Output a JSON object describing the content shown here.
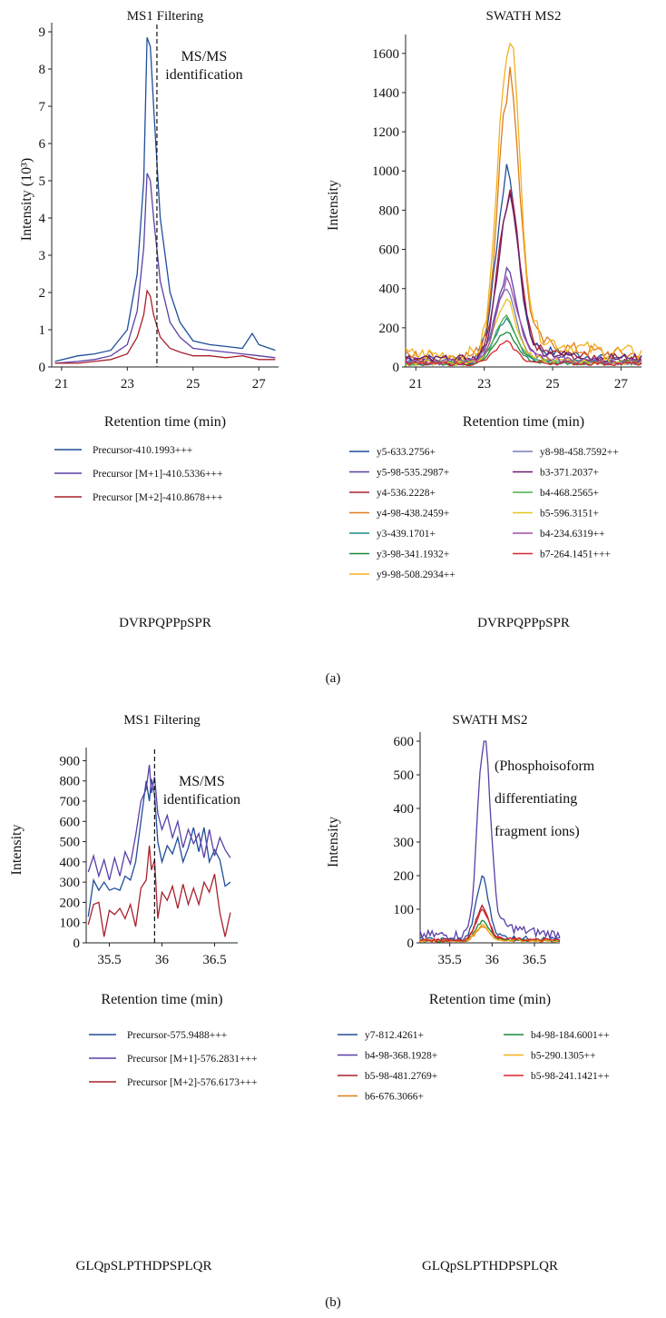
{
  "panel_labels": [
    "(a)",
    "(b)"
  ],
  "chart_data": [
    {
      "type": "line",
      "panel": "(a)",
      "title": "MS1 Filtering",
      "xlabel": "Retention time (min)",
      "ylabel": "Intensity (10³)",
      "xlim": [
        20.7,
        27.6
      ],
      "ylim": [
        0,
        9
      ],
      "xticks": [
        21,
        23,
        25,
        27
      ],
      "yticks": [
        0,
        1,
        2,
        3,
        4,
        5,
        6,
        7,
        8,
        9
      ],
      "annotation": {
        "lines": [
          "MS/MS",
          "identification"
        ],
        "x": 23.9
      },
      "peptide": "DVRPQPPpSPR",
      "legend": [
        "Precursor-410.1993+++",
        "Precursor [M+1]-410.5336+++",
        "Precursor [M+2]-410.8678+++"
      ],
      "series": [
        {
          "name": "Precursor-410.1993+++",
          "color": "#1f4e99",
          "x": [
            20.8,
            21.5,
            22.0,
            22.5,
            23.0,
            23.3,
            23.5,
            23.6,
            23.7,
            23.8,
            24.0,
            24.3,
            24.6,
            25.0,
            25.5,
            26.0,
            26.5,
            26.8,
            27.0,
            27.5
          ],
          "y": [
            0.15,
            0.3,
            0.35,
            0.45,
            1.0,
            2.5,
            5.0,
            8.85,
            8.6,
            7.0,
            4.0,
            2.0,
            1.2,
            0.7,
            0.6,
            0.55,
            0.5,
            0.9,
            0.6,
            0.45
          ]
        },
        {
          "name": "Precursor [M+1]-410.5336+++",
          "color": "#5b3fa6",
          "x": [
            20.8,
            21.5,
            22.0,
            22.5,
            23.0,
            23.3,
            23.5,
            23.6,
            23.7,
            23.8,
            24.0,
            24.3,
            24.6,
            25.0,
            25.5,
            26.0,
            26.5,
            27.0,
            27.5
          ],
          "y": [
            0.1,
            0.15,
            0.2,
            0.3,
            0.6,
            1.5,
            3.2,
            5.2,
            5.0,
            4.0,
            2.3,
            1.2,
            0.8,
            0.5,
            0.45,
            0.4,
            0.35,
            0.3,
            0.25
          ]
        },
        {
          "name": "Precursor [M+2]-410.8678+++",
          "color": "#a8202c",
          "x": [
            20.8,
            21.5,
            22.0,
            22.5,
            23.0,
            23.3,
            23.5,
            23.6,
            23.7,
            23.8,
            24.0,
            24.3,
            24.6,
            25.0,
            25.5,
            26.0,
            26.5,
            27.0,
            27.5
          ],
          "y": [
            0.1,
            0.1,
            0.15,
            0.2,
            0.35,
            0.8,
            1.4,
            2.05,
            1.9,
            1.4,
            0.8,
            0.5,
            0.4,
            0.3,
            0.3,
            0.25,
            0.3,
            0.2,
            0.2
          ]
        }
      ]
    },
    {
      "type": "line",
      "panel": "(a)",
      "title": "SWATH MS2",
      "xlabel": "Retention time (min)",
      "ylabel": "Intensity",
      "xlim": [
        20.7,
        27.6
      ],
      "ylim": [
        0,
        1650
      ],
      "xticks": [
        21,
        23,
        25,
        27
      ],
      "yticks": [
        0,
        200,
        400,
        600,
        800,
        1000,
        1200,
        1400,
        1600
      ],
      "peptide": "DVRPQPPpSPR",
      "legend_columns": 2,
      "series": [
        {
          "name": "y5-633.2756+",
          "color": "#1f4e99",
          "peak": 880,
          "center": 23.65
        },
        {
          "name": "y5-98-535.2987+",
          "color": "#5b3fa6",
          "peak": 420,
          "center": 23.65
        },
        {
          "name": "y4-536.2228+",
          "color": "#a8202c",
          "peak": 780,
          "center": 23.7
        },
        {
          "name": "y4-98-438.2459+",
          "color": "#e07b1c",
          "peak": 1340,
          "center": 23.7
        },
        {
          "name": "y3-439.1701+",
          "color": "#1a8a86",
          "peak": 210,
          "center": 23.6
        },
        {
          "name": "y3-98-341.1932+",
          "color": "#1b8a3a",
          "peak": 150,
          "center": 23.6
        },
        {
          "name": "y9-98-508.2934++",
          "color": "#f2b11c",
          "peak": 1560,
          "center": 23.7
        },
        {
          "name": "y8-98-458.7592++",
          "color": "#7a7fb8",
          "peak": 350,
          "center": 23.6
        },
        {
          "name": "b3-371.2037+",
          "color": "#6a1a6e",
          "peak": 760,
          "center": 23.7
        },
        {
          "name": "b4-468.2565+",
          "color": "#4fae4a",
          "peak": 220,
          "center": 23.6
        },
        {
          "name": "b5-596.3151+",
          "color": "#e8c21a",
          "peak": 300,
          "center": 23.6
        },
        {
          "name": "b4-234.6319++",
          "color": "#a24fa6",
          "peak": 380,
          "center": 23.65
        },
        {
          "name": "b7-264.1451+++",
          "color": "#d8262e",
          "peak": 100,
          "center": 23.6
        }
      ]
    },
    {
      "type": "line",
      "panel": "(b)",
      "title": "MS1 Filtering",
      "xlabel": "Retention time (min)",
      "ylabel": "Intensity",
      "xlim": [
        35.28,
        36.72
      ],
      "ylim": [
        0,
        920
      ],
      "xticks": [
        35.5,
        36,
        36.5
      ],
      "yticks": [
        0,
        100,
        200,
        300,
        400,
        500,
        600,
        700,
        800,
        900
      ],
      "annotation": {
        "lines": [
          "MS/MS",
          "identification"
        ],
        "x": 35.93
      },
      "peptide": "GLQpSLPTHDPSPLQR",
      "legend": [
        "Precursor-575.9488+++",
        "Precursor [M+1]-576.2831+++",
        "Precursor [M+2]-576.6173+++"
      ],
      "series": [
        {
          "name": "Precursor-575.9488+++",
          "color": "#1f4e99",
          "x": [
            35.3,
            35.35,
            35.4,
            35.45,
            35.5,
            35.55,
            35.6,
            35.65,
            35.7,
            35.75,
            35.8,
            35.85,
            35.88,
            35.9,
            35.93,
            35.96,
            36.0,
            36.05,
            36.1,
            36.15,
            36.2,
            36.25,
            36.3,
            36.35,
            36.4,
            36.45,
            36.5,
            36.55,
            36.6,
            36.65
          ],
          "y": [
            130,
            310,
            260,
            300,
            260,
            270,
            260,
            330,
            310,
            400,
            600,
            800,
            700,
            810,
            730,
            500,
            400,
            480,
            440,
            520,
            400,
            470,
            570,
            450,
            570,
            400,
            460,
            410,
            280,
            300
          ]
        },
        {
          "name": "Precursor [M+1]-576.2831+++",
          "color": "#5b3fa6",
          "x": [
            35.3,
            35.35,
            35.4,
            35.45,
            35.5,
            35.55,
            35.6,
            35.65,
            35.7,
            35.75,
            35.8,
            35.85,
            35.88,
            35.9,
            35.93,
            35.96,
            36.0,
            36.05,
            36.1,
            36.15,
            36.2,
            36.25,
            36.3,
            36.35,
            36.4,
            36.45,
            36.5,
            36.55,
            36.6,
            36.65
          ],
          "y": [
            350,
            430,
            330,
            410,
            310,
            420,
            330,
            450,
            390,
            530,
            700,
            760,
            880,
            740,
            820,
            640,
            560,
            630,
            520,
            600,
            470,
            560,
            490,
            540,
            420,
            560,
            430,
            520,
            460,
            420
          ]
        },
        {
          "name": "Precursor [M+2]-576.6173+++",
          "color": "#a8202c",
          "x": [
            35.3,
            35.35,
            35.4,
            35.45,
            35.5,
            35.55,
            35.6,
            35.65,
            35.7,
            35.75,
            35.8,
            35.85,
            35.88,
            35.9,
            35.93,
            35.96,
            36.0,
            36.05,
            36.1,
            36.15,
            36.2,
            36.25,
            36.3,
            36.35,
            36.4,
            36.45,
            36.5,
            36.55,
            36.6,
            36.65
          ],
          "y": [
            90,
            190,
            200,
            30,
            160,
            140,
            170,
            120,
            190,
            80,
            270,
            310,
            480,
            360,
            410,
            120,
            250,
            210,
            280,
            170,
            290,
            190,
            270,
            190,
            300,
            250,
            340,
            150,
            30,
            150
          ]
        }
      ]
    },
    {
      "type": "line",
      "panel": "(b)",
      "title": "SWATH MS2",
      "xlabel": "Retention time (min)",
      "ylabel": "Intensity",
      "xlim": [
        35.15,
        36.8
      ],
      "ylim": [
        0,
        600
      ],
      "xticks": [
        35.5,
        36,
        36.5
      ],
      "yticks": [
        0,
        100,
        200,
        300,
        400,
        500,
        600
      ],
      "annotation": {
        "lines": [
          "(Phosphoisoform",
          "differentiating",
          "fragment ions)"
        ]
      },
      "peptide": "GLQpSLPTHDPSPLQR",
      "legend_columns": 2,
      "series": [
        {
          "name": "y7-812.4261+",
          "color": "#1f4e99",
          "peak": 170,
          "center": 35.88
        },
        {
          "name": "b4-98-368.1928+",
          "color": "#5b3fa6",
          "peak": 567,
          "center": 35.9
        },
        {
          "name": "b5-98-481.2769+",
          "color": "#a8202c",
          "peak": 92,
          "center": 35.88
        },
        {
          "name": "b6-676.3066+",
          "color": "#e07b1c",
          "peak": 40,
          "center": 35.88
        },
        {
          "name": "b4-98-184.6001++",
          "color": "#1b8a3a",
          "peak": 55,
          "center": 35.88
        },
        {
          "name": "b5-290.1305++",
          "color": "#f2b11c",
          "peak": 42,
          "center": 35.88
        },
        {
          "name": "b5-98-241.1421++",
          "color": "#d8262e",
          "peak": 85,
          "center": 35.88
        }
      ]
    }
  ]
}
